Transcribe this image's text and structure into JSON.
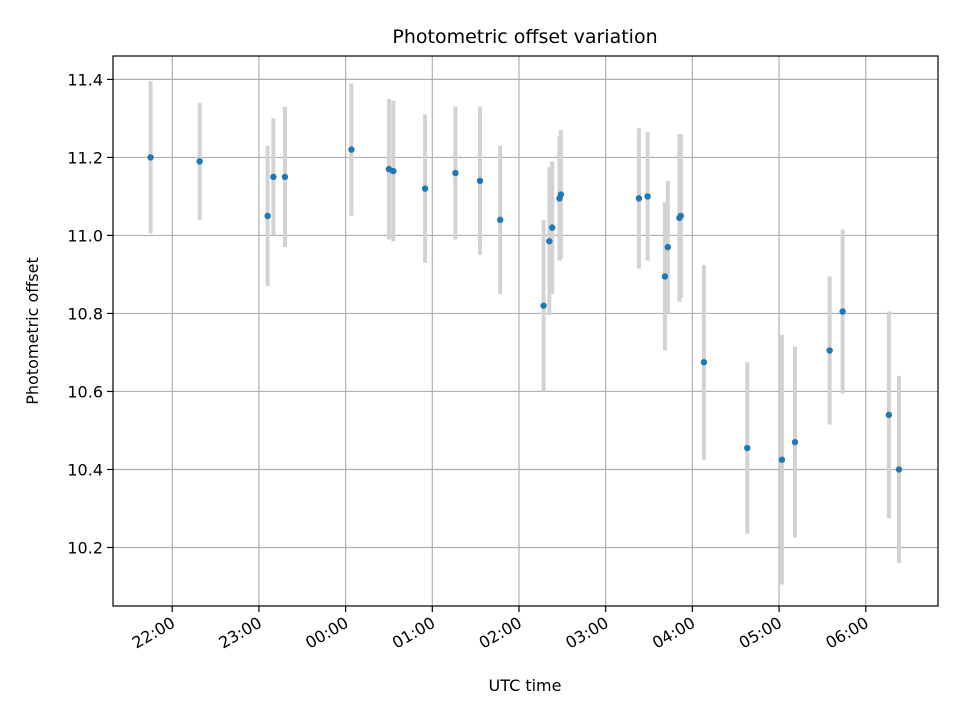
{
  "chart_data": {
    "type": "scatter",
    "title": "Photometric offset variation",
    "xlabel": "UTC time",
    "ylabel": "Photometric offset",
    "x_axis_type": "time",
    "xlim": [
      "21:19",
      "06:50"
    ],
    "ylim": [
      10.05,
      11.46
    ],
    "grid": true,
    "x_ticks": [
      "22:00",
      "23:00",
      "00:00",
      "01:00",
      "02:00",
      "03:00",
      "04:00",
      "05:00",
      "06:00"
    ],
    "y_ticks": [
      "10.2",
      "10.4",
      "10.6",
      "10.8",
      "11.0",
      "11.2",
      "11.4"
    ],
    "colors": {
      "point": "#1f77b4",
      "errorbar": "#d3d3d3",
      "grid": "#b0b0b0"
    },
    "points": [
      {
        "x": "21:45",
        "y": 11.2,
        "err": 0.195
      },
      {
        "x": "22:19",
        "y": 11.19,
        "err": 0.15
      },
      {
        "x": "23:06",
        "y": 11.05,
        "err": 0.18
      },
      {
        "x": "23:10",
        "y": 11.15,
        "err": 0.15
      },
      {
        "x": "23:18",
        "y": 11.15,
        "err": 0.18
      },
      {
        "x": "00:04",
        "y": 11.22,
        "err": 0.17
      },
      {
        "x": "00:30",
        "y": 11.17,
        "err": 0.18
      },
      {
        "x": "00:33",
        "y": 11.165,
        "err": 0.18
      },
      {
        "x": "00:55",
        "y": 11.12,
        "err": 0.19
      },
      {
        "x": "01:16",
        "y": 11.16,
        "err": 0.17
      },
      {
        "x": "01:33",
        "y": 11.14,
        "err": 0.19
      },
      {
        "x": "01:47",
        "y": 11.04,
        "err": 0.19
      },
      {
        "x": "02:17",
        "y": 10.82,
        "err": 0.22
      },
      {
        "x": "02:21",
        "y": 10.985,
        "err": 0.19
      },
      {
        "x": "02:23",
        "y": 11.02,
        "err": 0.17
      },
      {
        "x": "02:28",
        "y": 11.095,
        "err": 0.16
      },
      {
        "x": "02:29",
        "y": 11.105,
        "err": 0.165
      },
      {
        "x": "03:23",
        "y": 11.095,
        "err": 0.18
      },
      {
        "x": "03:29",
        "y": 11.1,
        "err": 0.165
      },
      {
        "x": "03:41",
        "y": 10.895,
        "err": 0.19
      },
      {
        "x": "03:43",
        "y": 10.97,
        "err": 0.17
      },
      {
        "x": "03:51",
        "y": 11.045,
        "err": 0.215
      },
      {
        "x": "03:52",
        "y": 11.05,
        "err": 0.21
      },
      {
        "x": "04:08",
        "y": 10.675,
        "err": 0.25
      },
      {
        "x": "04:38",
        "y": 10.455,
        "err": 0.22
      },
      {
        "x": "05:02",
        "y": 10.425,
        "err": 0.32
      },
      {
        "x": "05:11",
        "y": 10.47,
        "err": 0.245
      },
      {
        "x": "05:35",
        "y": 10.705,
        "err": 0.19
      },
      {
        "x": "05:44",
        "y": 10.805,
        "err": 0.21
      },
      {
        "x": "06:16",
        "y": 10.54,
        "err": 0.265
      },
      {
        "x": "06:23",
        "y": 10.4,
        "err": 0.24
      }
    ]
  }
}
